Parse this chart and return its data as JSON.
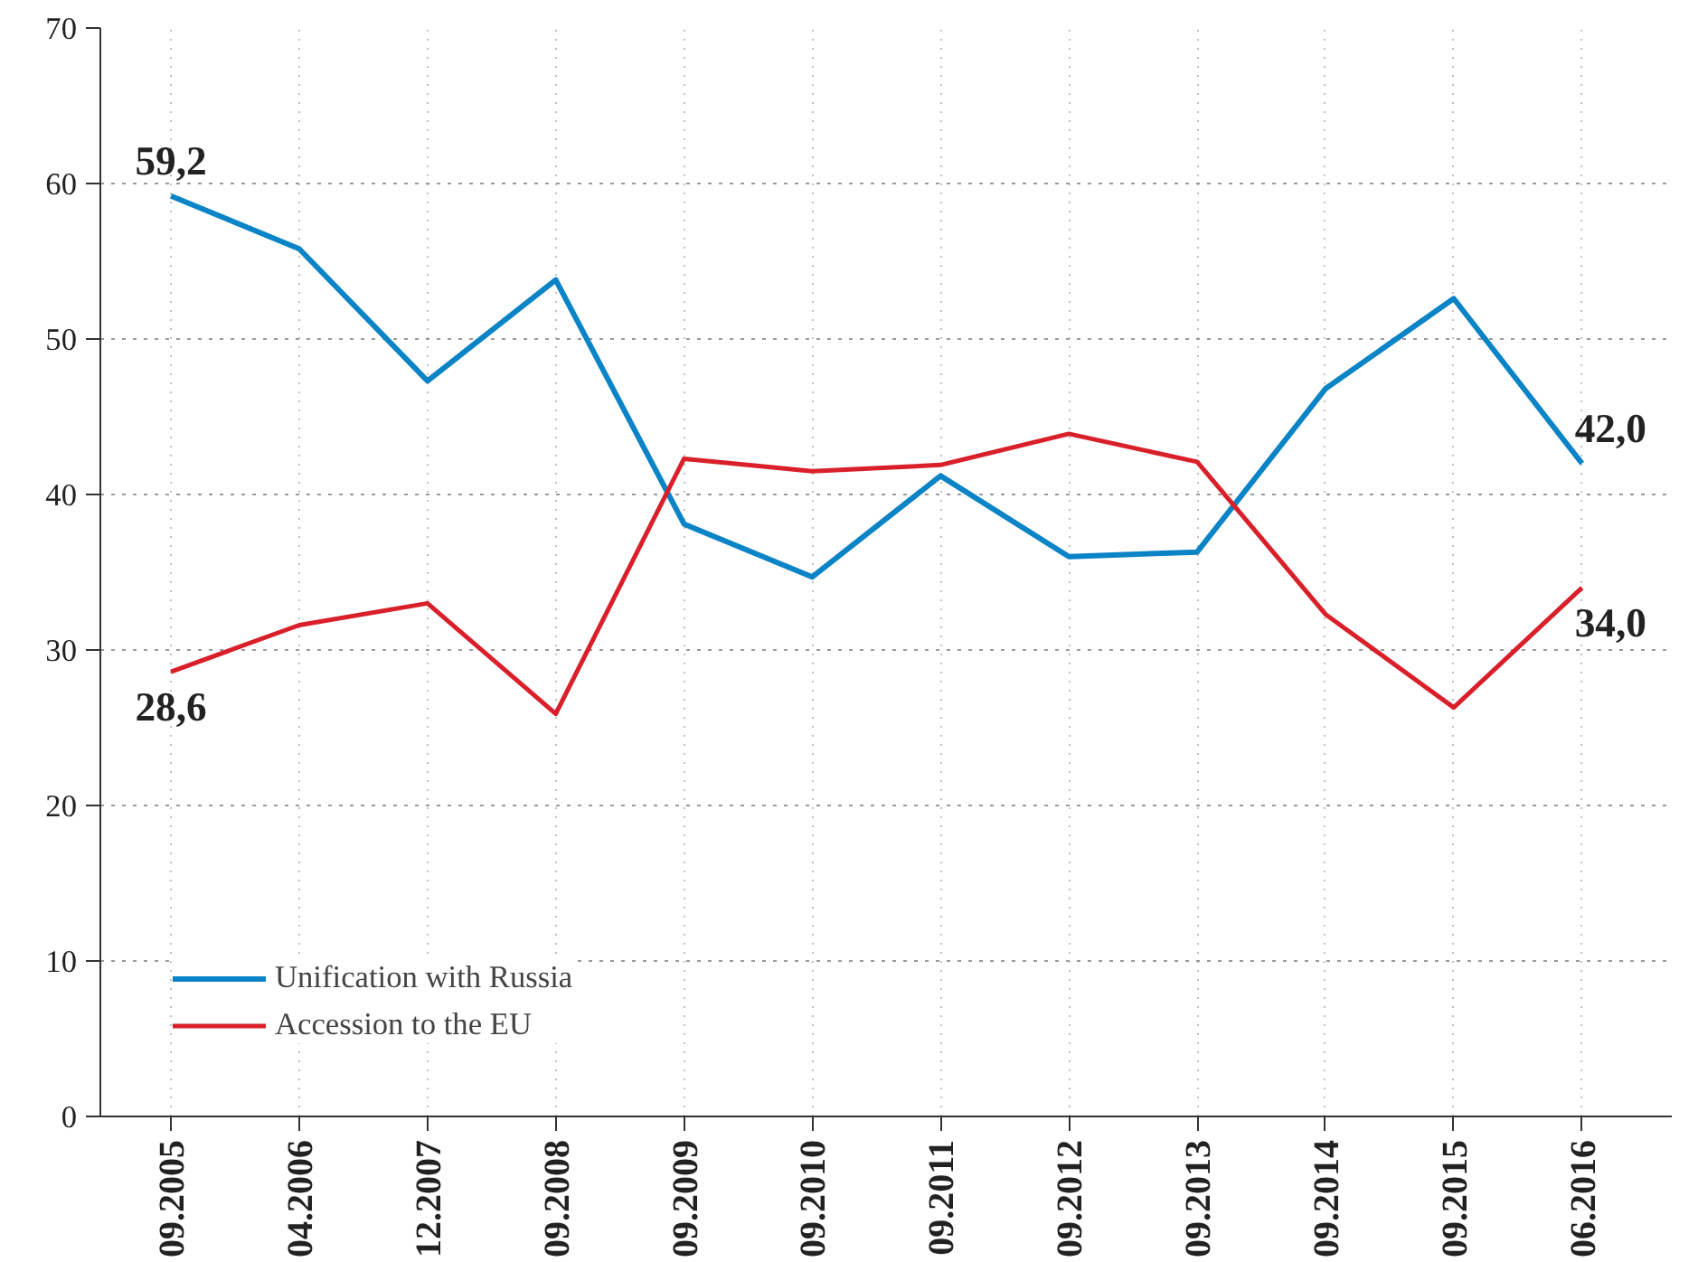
{
  "chart_data": {
    "type": "line",
    "categories": [
      "09.2005",
      "04.2006",
      "12.2007",
      "09.2008",
      "09.2009",
      "09.2010",
      "09.2011",
      "09.2012",
      "09.2013",
      "09.2014",
      "09.2015",
      "06.2016"
    ],
    "series": [
      {
        "name": "Unification with Russia",
        "color": "#0a84c6",
        "values": [
          59.2,
          55.8,
          47.3,
          53.8,
          38.1,
          34.7,
          41.2,
          36.0,
          36.3,
          46.8,
          52.6,
          42.0
        ],
        "value_labels": [
          "59,2",
          null,
          null,
          null,
          null,
          null,
          null,
          null,
          null,
          null,
          null,
          "42,0"
        ]
      },
      {
        "name": "Accession to the EU",
        "color": "#d9202a",
        "values": [
          28.6,
          31.6,
          33.0,
          25.9,
          42.3,
          41.5,
          41.9,
          43.9,
          42.1,
          32.3,
          26.3,
          34.0
        ],
        "value_labels": [
          "28,6",
          null,
          null,
          null,
          null,
          null,
          null,
          null,
          null,
          null,
          null,
          "34,0"
        ]
      }
    ],
    "ylim": [
      0,
      70
    ],
    "yticks": [
      0,
      10,
      20,
      30,
      40,
      50,
      60,
      70
    ],
    "grid": true,
    "legend": "bottom left",
    "line_style": "solid",
    "marker": "none"
  }
}
